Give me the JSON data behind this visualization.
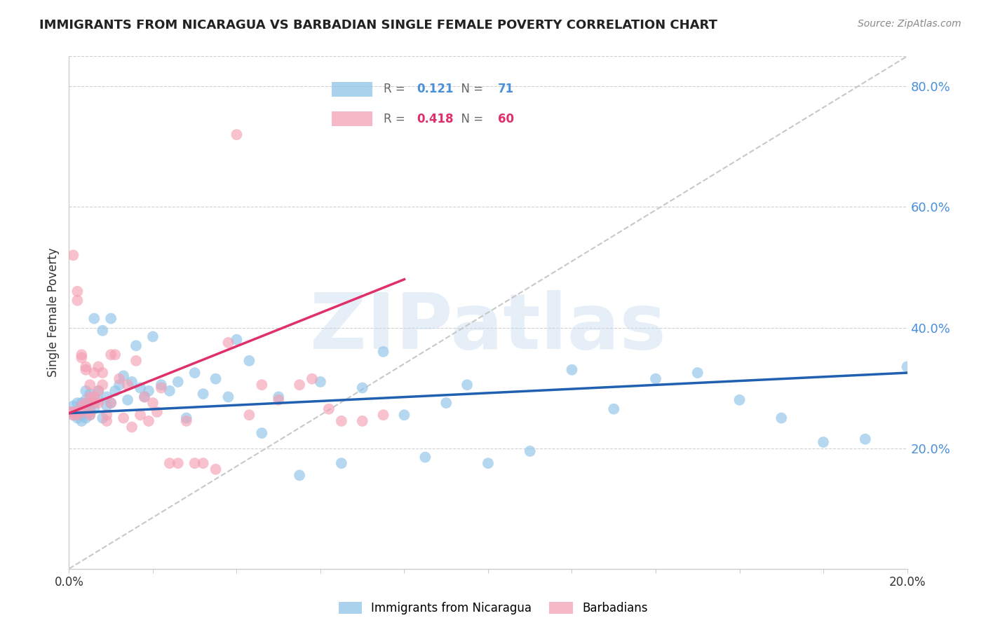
{
  "title": "IMMIGRANTS FROM NICARAGUA VS BARBADIAN SINGLE FEMALE POVERTY CORRELATION CHART",
  "source": "Source: ZipAtlas.com",
  "ylabel": "Single Female Poverty",
  "legend_label_1": "Immigrants from Nicaragua",
  "legend_label_2": "Barbadians",
  "R1": "0.121",
  "N1": "71",
  "R2": "0.418",
  "N2": "60",
  "color_blue": "#8ec4e8",
  "color_pink": "#f4a0b5",
  "color_blue_line": "#2060b0",
  "color_pink_line": "#e0306a",
  "color_diag": "#c8c8c8",
  "color_right_axis": "#4a90d9",
  "color_pink_text": "#e0306a",
  "xlim": [
    0.0,
    0.2
  ],
  "ylim": [
    0.0,
    0.85
  ],
  "watermark": "ZIPatlas",
  "blue_points_x": [
    0.0005,
    0.001,
    0.001,
    0.002,
    0.002,
    0.002,
    0.003,
    0.003,
    0.003,
    0.003,
    0.004,
    0.004,
    0.004,
    0.004,
    0.005,
    0.005,
    0.005,
    0.005,
    0.006,
    0.006,
    0.006,
    0.007,
    0.007,
    0.008,
    0.008,
    0.009,
    0.009,
    0.01,
    0.01,
    0.011,
    0.012,
    0.013,
    0.014,
    0.015,
    0.016,
    0.017,
    0.018,
    0.019,
    0.02,
    0.022,
    0.024,
    0.026,
    0.028,
    0.03,
    0.032,
    0.035,
    0.038,
    0.04,
    0.043,
    0.046,
    0.05,
    0.055,
    0.06,
    0.065,
    0.07,
    0.075,
    0.08,
    0.085,
    0.09,
    0.095,
    0.1,
    0.11,
    0.12,
    0.13,
    0.14,
    0.15,
    0.16,
    0.17,
    0.18,
    0.19,
    0.2
  ],
  "blue_points_y": [
    0.26,
    0.255,
    0.27,
    0.25,
    0.26,
    0.275,
    0.245,
    0.255,
    0.26,
    0.275,
    0.25,
    0.265,
    0.28,
    0.295,
    0.255,
    0.265,
    0.275,
    0.29,
    0.265,
    0.275,
    0.415,
    0.28,
    0.295,
    0.25,
    0.395,
    0.27,
    0.285,
    0.275,
    0.415,
    0.295,
    0.305,
    0.32,
    0.28,
    0.31,
    0.37,
    0.3,
    0.285,
    0.295,
    0.385,
    0.305,
    0.295,
    0.31,
    0.25,
    0.325,
    0.29,
    0.315,
    0.285,
    0.38,
    0.345,
    0.225,
    0.285,
    0.155,
    0.31,
    0.175,
    0.3,
    0.36,
    0.255,
    0.185,
    0.275,
    0.305,
    0.175,
    0.195,
    0.33,
    0.265,
    0.315,
    0.325,
    0.28,
    0.25,
    0.21,
    0.215,
    0.335
  ],
  "pink_points_x": [
    0.0005,
    0.001,
    0.001,
    0.001,
    0.002,
    0.002,
    0.002,
    0.002,
    0.003,
    0.003,
    0.003,
    0.003,
    0.004,
    0.004,
    0.004,
    0.005,
    0.005,
    0.005,
    0.005,
    0.006,
    0.006,
    0.006,
    0.007,
    0.007,
    0.007,
    0.008,
    0.008,
    0.009,
    0.009,
    0.01,
    0.01,
    0.011,
    0.012,
    0.013,
    0.014,
    0.015,
    0.016,
    0.017,
    0.018,
    0.019,
    0.02,
    0.021,
    0.022,
    0.024,
    0.026,
    0.028,
    0.03,
    0.032,
    0.035,
    0.038,
    0.04,
    0.043,
    0.046,
    0.05,
    0.055,
    0.058,
    0.062,
    0.065,
    0.07,
    0.075
  ],
  "pink_points_y": [
    0.26,
    0.52,
    0.26,
    0.255,
    0.46,
    0.445,
    0.26,
    0.255,
    0.35,
    0.355,
    0.27,
    0.26,
    0.33,
    0.335,
    0.275,
    0.305,
    0.285,
    0.26,
    0.255,
    0.325,
    0.285,
    0.275,
    0.335,
    0.295,
    0.275,
    0.325,
    0.305,
    0.255,
    0.245,
    0.355,
    0.275,
    0.355,
    0.315,
    0.25,
    0.305,
    0.235,
    0.345,
    0.255,
    0.285,
    0.245,
    0.275,
    0.26,
    0.3,
    0.175,
    0.175,
    0.245,
    0.175,
    0.175,
    0.165,
    0.375,
    0.72,
    0.255,
    0.305,
    0.28,
    0.305,
    0.315,
    0.265,
    0.245,
    0.245,
    0.255
  ]
}
